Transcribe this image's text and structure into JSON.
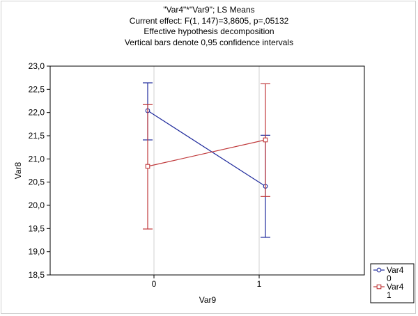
{
  "chart_data": {
    "type": "line",
    "title_lines": [
      "\"Var4\"*\"Var9\"; LS Means",
      "Current effect: F(1, 147)=3,8605, p=,05132",
      "Effective hypothesis decomposition",
      "Vertical bars denote 0,95 confidence intervals"
    ],
    "xlabel": "Var9",
    "ylabel": "Var8",
    "categories": [
      "0",
      "1"
    ],
    "ylim": [
      18.5,
      23.0
    ],
    "y_ticks": [
      "18,5",
      "19,0",
      "19,5",
      "20,0",
      "20,5",
      "21,0",
      "21,5",
      "22,0",
      "22,5",
      "23,0"
    ],
    "y_tick_values": [
      18.5,
      19.0,
      19.5,
      20.0,
      20.5,
      21.0,
      21.5,
      22.0,
      22.5,
      23.0
    ],
    "grid": true,
    "legend_position": "bottom-right",
    "series": [
      {
        "name": "Var4",
        "level": "0",
        "marker": "circle",
        "color": "#1f2a9c",
        "values": [
          22.04,
          20.41
        ],
        "ci_low": [
          21.41,
          19.31
        ],
        "ci_high": [
          22.64,
          21.51
        ]
      },
      {
        "name": "Var4",
        "level": "1",
        "marker": "square",
        "color": "#c0393b",
        "values": [
          20.84,
          21.41
        ],
        "ci_low": [
          19.49,
          20.19
        ],
        "ci_high": [
          22.17,
          22.62
        ]
      }
    ]
  }
}
